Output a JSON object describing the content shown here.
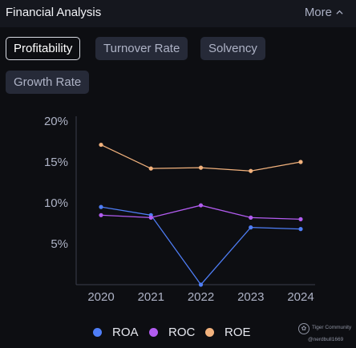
{
  "header": {
    "title": "Financial Analysis",
    "more_label": "More"
  },
  "tabs": [
    {
      "label": "Profitability",
      "active": true
    },
    {
      "label": "Turnover Rate",
      "active": false
    },
    {
      "label": "Solvency",
      "active": false
    },
    {
      "label": "Growth Rate",
      "active": false
    }
  ],
  "chart_data": {
    "type": "line",
    "categories": [
      "2020",
      "2021",
      "2022",
      "2023",
      "2024"
    ],
    "y_ticks": [
      "5%",
      "10%",
      "15%",
      "20%"
    ],
    "ylim": [
      0,
      20
    ],
    "grid": false,
    "legend_position": "bottom",
    "series": [
      {
        "name": "ROA",
        "color": "#4f7ef7",
        "values": [
          9.5,
          8.5,
          0,
          7.0,
          6.8
        ]
      },
      {
        "name": "ROC",
        "color": "#b25cf0",
        "values": [
          8.5,
          8.2,
          9.7,
          8.2,
          8.0
        ]
      },
      {
        "name": "ROE",
        "color": "#f2b27d",
        "values": [
          17.1,
          14.2,
          14.3,
          13.9,
          15.0
        ]
      }
    ]
  },
  "watermark": {
    "brand": "Tiger Community",
    "user": "@nerdbull1669"
  }
}
